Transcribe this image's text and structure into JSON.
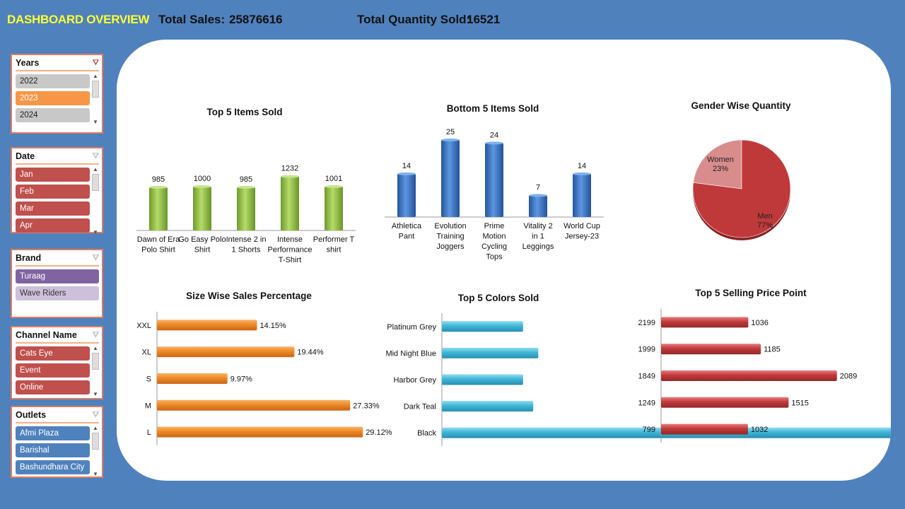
{
  "header": {
    "title": "DASHBOARD OVERVIEW",
    "sales_label": "Total Sales:",
    "sales_value": "25876616",
    "qty_label": "Total Quantity Sold:",
    "qty_value": "16521"
  },
  "colors": {
    "background": "#4f81bd",
    "title": "#ffff33",
    "green": "#92c34a",
    "blue": "#3a74c4",
    "orange": "#ef8a25",
    "cyan": "#3fb6d8",
    "red": "#c0393a",
    "pie_men": "#c0393a",
    "pie_women": "#d98c8c"
  },
  "slicers": [
    {
      "name": "Years",
      "items": [
        {
          "label": "2022",
          "state": "off"
        },
        {
          "label": "2023",
          "state": "on"
        },
        {
          "label": "2024",
          "state": "off"
        }
      ]
    },
    {
      "name": "Date",
      "items": [
        {
          "label": "Jan",
          "state": "on"
        },
        {
          "label": "Feb",
          "state": "on"
        },
        {
          "label": "Mar",
          "state": "on"
        },
        {
          "label": "Apr",
          "state": "on"
        }
      ]
    },
    {
      "name": "Brand",
      "items": [
        {
          "label": "Turaag",
          "state": "on"
        },
        {
          "label": "Wave Riders",
          "state": "light"
        }
      ]
    },
    {
      "name": "Channel Name",
      "items": [
        {
          "label": "Cats Eye",
          "state": "on"
        },
        {
          "label": "Event",
          "state": "on"
        },
        {
          "label": "Online",
          "state": "on"
        }
      ]
    },
    {
      "name": "Outlets",
      "items": [
        {
          "label": "Afmi Plaza",
          "state": "on"
        },
        {
          "label": "Barishal",
          "state": "on"
        },
        {
          "label": "Bashundhara City",
          "state": "on"
        }
      ]
    }
  ],
  "chart_data": [
    {
      "id": "top5",
      "type": "bar",
      "title": "Top 5 Items Sold",
      "categories": [
        "Dawn of Era Polo Shirt",
        "Go Easy Polo Shirt",
        "Intense 2 in 1 Shorts",
        "Intense Performance T-Shirt",
        "Performer T shirt"
      ],
      "values": [
        985,
        1000,
        985,
        1232,
        1001
      ],
      "ylim": [
        0,
        1300
      ]
    },
    {
      "id": "bottom5",
      "type": "bar",
      "title": "Bottom  5 Items Sold",
      "categories": [
        "Athletica Pant",
        "Evolution Training Joggers",
        "Prime Motion Cycling Tops",
        "Vitality 2 in 1 Leggings",
        "World Cup Jersey-23"
      ],
      "values": [
        14,
        25,
        24,
        7,
        14
      ],
      "ylim": [
        0,
        28
      ]
    },
    {
      "id": "gender",
      "type": "pie",
      "title": "Gender Wise Quantity",
      "categories": [
        "Women",
        "Men"
      ],
      "values": [
        23,
        77
      ],
      "labels": [
        "23%",
        "77%"
      ]
    },
    {
      "id": "size",
      "type": "bar",
      "orientation": "horizontal",
      "title": "Size Wise Sales Percentage",
      "categories": [
        "XXL",
        "XL",
        "S",
        "M",
        "L"
      ],
      "values": [
        14.15,
        19.44,
        9.97,
        27.33,
        29.12
      ],
      "labels": [
        "14.15%",
        "19.44%",
        "9.97%",
        "27.33%",
        "29.12%"
      ],
      "xlim": [
        0,
        30
      ]
    },
    {
      "id": "colors",
      "type": "bar",
      "orientation": "horizontal",
      "title": "Top 5 Colors  Sold",
      "categories": [
        "Platinum Grey",
        "Mid Night Blue",
        "Harbor Grey",
        "Dark Teal",
        "Black"
      ],
      "values": [
        160,
        190,
        160,
        180,
        950
      ],
      "xlim": [
        0,
        1000
      ]
    },
    {
      "id": "price",
      "type": "bar",
      "orientation": "horizontal",
      "title": "Top  5 Selling  Price Point",
      "categories": [
        "2199",
        "1999",
        "1849",
        "1249",
        "799"
      ],
      "values": [
        1036,
        1185,
        2089,
        1515,
        1032
      ],
      "xlim": [
        0,
        2200
      ]
    }
  ]
}
